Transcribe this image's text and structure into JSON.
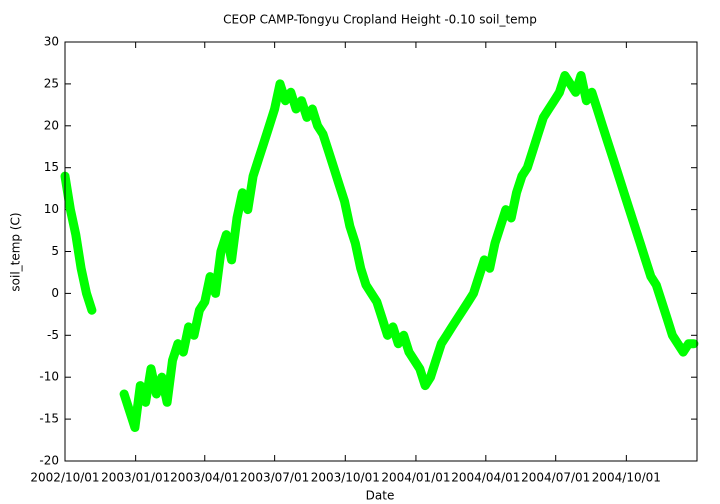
{
  "chart_data": {
    "type": "line",
    "title": "CEOP CAMP-Tongyu Cropland Height -0.10 soil_temp",
    "xlabel": "Date",
    "ylabel": "soil_temp (C)",
    "xlim": [
      "2002/10/01",
      "2005/01/01"
    ],
    "xticks": [
      "2002/10/01",
      "2003/01/01",
      "2003/04/01",
      "2003/07/01",
      "2003/10/01",
      "2004/01/01",
      "2004/04/01",
      "2004/07/01",
      "2004/10/01"
    ],
    "ylim": [
      -20,
      30
    ],
    "yticks": [
      -20,
      -15,
      -10,
      -5,
      0,
      5,
      10,
      15,
      20,
      25,
      30
    ],
    "color": "#00ff00",
    "x": [
      "2002/10/01",
      "2002/10/08",
      "2002/10/15",
      "2002/10/22",
      "2002/10/29",
      "2002/11/05",
      "2002/11/12",
      "2002/11/19",
      "2002/11/26",
      "2002/12/03",
      "2002/12/10",
      "2002/12/17",
      "2002/12/24",
      "2002/12/31",
      "2003/01/07",
      "2003/01/14",
      "2003/01/21",
      "2003/01/28",
      "2003/02/04",
      "2003/02/11",
      "2003/02/18",
      "2003/02/25",
      "2003/03/04",
      "2003/03/11",
      "2003/03/18",
      "2003/03/25",
      "2003/04/01",
      "2003/04/08",
      "2003/04/15",
      "2003/04/22",
      "2003/04/29",
      "2003/05/06",
      "2003/05/13",
      "2003/05/20",
      "2003/05/27",
      "2003/06/03",
      "2003/06/10",
      "2003/06/17",
      "2003/06/24",
      "2003/07/01",
      "2003/07/08",
      "2003/07/15",
      "2003/07/22",
      "2003/07/29",
      "2003/08/05",
      "2003/08/12",
      "2003/08/19",
      "2003/08/26",
      "2003/09/02",
      "2003/09/09",
      "2003/09/16",
      "2003/09/23",
      "2003/09/30",
      "2003/10/07",
      "2003/10/14",
      "2003/10/21",
      "2003/10/28",
      "2003/11/04",
      "2003/11/11",
      "2003/11/18",
      "2003/11/25",
      "2003/12/02",
      "2003/12/09",
      "2003/12/16",
      "2003/12/23",
      "2003/12/30",
      "2004/01/06",
      "2004/01/13",
      "2004/01/20",
      "2004/01/27",
      "2004/02/03",
      "2004/02/10",
      "2004/02/17",
      "2004/02/24",
      "2004/03/02",
      "2004/03/09",
      "2004/03/16",
      "2004/03/23",
      "2004/03/30",
      "2004/04/06",
      "2004/04/13",
      "2004/04/20",
      "2004/04/27",
      "2004/05/04",
      "2004/05/11",
      "2004/05/18",
      "2004/05/25",
      "2004/06/01",
      "2004/06/08",
      "2004/06/15",
      "2004/06/22",
      "2004/06/29",
      "2004/07/06",
      "2004/07/13",
      "2004/07/20",
      "2004/07/27",
      "2004/08/03",
      "2004/08/10",
      "2004/08/17",
      "2004/08/24",
      "2004/08/31",
      "2004/09/07",
      "2004/09/14",
      "2004/09/21",
      "2004/09/28",
      "2004/10/05",
      "2004/10/12",
      "2004/10/19",
      "2004/10/26",
      "2004/11/02",
      "2004/11/09",
      "2004/11/16",
      "2004/11/23",
      "2004/11/30",
      "2004/12/07",
      "2004/12/14",
      "2004/12/21",
      "2004/12/28"
    ],
    "values": [
      14,
      10,
      7,
      3,
      0,
      -2,
      null,
      null,
      null,
      null,
      null,
      -12,
      -14,
      -16,
      -11,
      -13,
      -9,
      -12,
      -10,
      -13,
      -8,
      -6,
      -7,
      -4,
      -5,
      -2,
      -1,
      2,
      0,
      5,
      7,
      4,
      9,
      12,
      10,
      14,
      16,
      18,
      20,
      22,
      25,
      23,
      24,
      22,
      23,
      21,
      22,
      20,
      19,
      17,
      15,
      13,
      11,
      8,
      6,
      3,
      1,
      0,
      -1,
      -3,
      -5,
      -4,
      -6,
      -5,
      -7,
      -8,
      -9,
      -11,
      -10,
      -8,
      -6,
      -5,
      -4,
      -3,
      -2,
      -1,
      0,
      2,
      4,
      3,
      6,
      8,
      10,
      9,
      12,
      14,
      15,
      17,
      19,
      21,
      22,
      23,
      24,
      26,
      25,
      24,
      26,
      23,
      24,
      22,
      20,
      18,
      16,
      14,
      12,
      10,
      8,
      6,
      4,
      2,
      1,
      -1,
      -3,
      -5,
      -6,
      -7,
      -6,
      -6
    ]
  }
}
